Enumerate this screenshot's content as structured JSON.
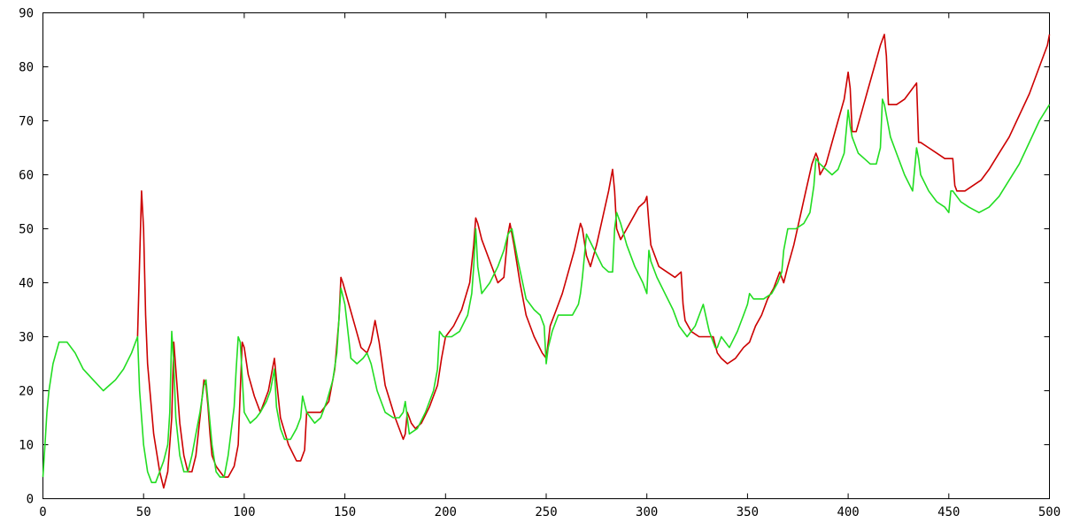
{
  "chart_data": {
    "type": "line",
    "title": "",
    "xlabel": "",
    "ylabel": "",
    "xlim": [
      0,
      500
    ],
    "ylim": [
      0,
      90
    ],
    "xticks": [
      0,
      50,
      100,
      150,
      200,
      250,
      300,
      350,
      400,
      450,
      500
    ],
    "yticks": [
      0,
      10,
      20,
      30,
      40,
      50,
      60,
      70,
      80,
      90
    ],
    "grid": false,
    "legend": "none",
    "series": [
      {
        "color": "#cc0000",
        "x": [
          47,
          48,
          49,
          50,
          51,
          52,
          55,
          58,
          60,
          62,
          64,
          65,
          66,
          68,
          70,
          72,
          74,
          76,
          78,
          80,
          81,
          82,
          83,
          84,
          86,
          88,
          90,
          92,
          95,
          97,
          98,
          99,
          100,
          102,
          105,
          108,
          112,
          114,
          115,
          116,
          118,
          122,
          126,
          128,
          130,
          131,
          133,
          138,
          142,
          145,
          147,
          148,
          149,
          152,
          155,
          158,
          161,
          163,
          165,
          167,
          170,
          175,
          179,
          180,
          181,
          182,
          183,
          185,
          188,
          192,
          196,
          198,
          200,
          204,
          208,
          212,
          214,
          215,
          216,
          218,
          222,
          226,
          229,
          231,
          232,
          234,
          237,
          240,
          244,
          248,
          250,
          251,
          252,
          255,
          258,
          261,
          264,
          267,
          268,
          270,
          272,
          275,
          278,
          281,
          283,
          284,
          285,
          287,
          290,
          293,
          296,
          299,
          300,
          301,
          302,
          306,
          310,
          314,
          317,
          318,
          319,
          322,
          326,
          330,
          333,
          335,
          337,
          340,
          344,
          348,
          351,
          352,
          354,
          357,
          360,
          363,
          366,
          368,
          370,
          373,
          376,
          379,
          382,
          384,
          385,
          386,
          389,
          392,
          395,
          398,
          400,
          401,
          402,
          404,
          407,
          410,
          413,
          416,
          418,
          419,
          420,
          424,
          428,
          432,
          434,
          435,
          436,
          440,
          444,
          448,
          452,
          453,
          454,
          458,
          462,
          466,
          470,
          475,
          480,
          485,
          490,
          495,
          499,
          500
        ],
        "y": [
          30,
          44,
          57,
          50,
          34,
          25,
          12,
          5,
          2,
          5,
          15,
          29,
          24,
          14,
          8,
          5,
          5,
          8,
          15,
          22,
          21,
          17,
          12,
          8,
          6,
          5,
          4,
          4,
          6,
          10,
          20,
          29,
          28,
          23,
          19,
          16,
          20,
          24,
          26,
          22,
          15,
          10,
          7,
          7,
          9,
          16,
          16,
          16,
          18,
          24,
          33,
          41,
          40,
          36,
          32,
          28,
          27,
          29,
          33,
          29,
          21,
          15,
          11,
          12,
          16,
          15,
          14,
          13,
          14,
          17,
          21,
          26,
          30,
          32,
          35,
          40,
          47,
          52,
          51,
          48,
          44,
          40,
          41,
          49,
          51,
          47,
          40,
          34,
          30,
          27,
          26,
          29,
          32,
          35,
          38,
          42,
          46,
          51,
          50,
          45,
          43,
          47,
          52,
          57,
          61,
          57,
          50,
          48,
          50,
          52,
          54,
          55,
          56,
          51,
          47,
          43,
          42,
          41,
          42,
          36,
          33,
          31,
          30,
          30,
          30,
          27,
          26,
          25,
          26,
          28,
          29,
          30,
          32,
          34,
          37,
          39,
          42,
          40,
          43,
          47,
          52,
          57,
          62,
          64,
          63,
          60,
          62,
          66,
          70,
          74,
          79,
          76,
          68,
          68,
          72,
          76,
          80,
          84,
          86,
          82,
          73,
          73,
          74,
          76,
          77,
          66,
          66,
          65,
          64,
          63,
          63,
          58,
          57,
          57,
          58,
          59,
          61,
          64,
          67,
          71,
          75,
          80,
          84,
          86
        ]
      },
      {
        "color": "#22dd22",
        "x": [
          0,
          1,
          2,
          3,
          5,
          8,
          12,
          16,
          20,
          25,
          30,
          33,
          36,
          40,
          44,
          46,
          47,
          48,
          50,
          52,
          54,
          56,
          58,
          60,
          62,
          63,
          64,
          65,
          66,
          68,
          70,
          72,
          74,
          76,
          78,
          80,
          81,
          82,
          84,
          86,
          88,
          90,
          92,
          95,
          96,
          97,
          98,
          100,
          103,
          106,
          108,
          111,
          113,
          114,
          115,
          116,
          118,
          120,
          123,
          126,
          128,
          129,
          131,
          135,
          138,
          141,
          144,
          146,
          147,
          148,
          150,
          153,
          156,
          159,
          161,
          163,
          166,
          170,
          174,
          177,
          179,
          180,
          182,
          186,
          190,
          194,
          196,
          197,
          199,
          203,
          207,
          211,
          213,
          214,
          215,
          216,
          218,
          222,
          226,
          229,
          231,
          233,
          236,
          240,
          244,
          247,
          249,
          250,
          251,
          253,
          256,
          260,
          263,
          266,
          267,
          268,
          270,
          274,
          278,
          281,
          283,
          284,
          285,
          287,
          290,
          294,
          298,
          300,
          301,
          302,
          305,
          309,
          313,
          316,
          318,
          320,
          324,
          328,
          331,
          333,
          334,
          335,
          337,
          341,
          345,
          348,
          350,
          351,
          353,
          358,
          362,
          365,
          367,
          368,
          370,
          374,
          378,
          381,
          383,
          384,
          386,
          389,
          392,
          395,
          398,
          400,
          401,
          402,
          403,
          405,
          408,
          411,
          414,
          416,
          417,
          418,
          419,
          421,
          424,
          428,
          432,
          434,
          435,
          436,
          440,
          444,
          448,
          450,
          451,
          452,
          456,
          460,
          465,
          470,
          475,
          480,
          485,
          490,
          495,
          500
        ],
        "y": [
          4,
          10,
          16,
          20,
          25,
          29,
          29,
          27,
          24,
          22,
          20,
          21,
          22,
          24,
          27,
          29,
          30,
          20,
          10,
          5,
          3,
          3,
          5,
          7,
          10,
          16,
          31,
          25,
          15,
          8,
          5,
          5,
          8,
          12,
          16,
          21,
          22,
          18,
          10,
          5,
          4,
          4,
          8,
          17,
          24,
          30,
          29,
          16,
          14,
          15,
          16,
          18,
          20,
          22,
          24,
          17,
          13,
          11,
          11,
          13,
          15,
          19,
          16,
          14,
          15,
          18,
          22,
          27,
          33,
          39,
          36,
          26,
          25,
          26,
          27,
          25,
          20,
          16,
          15,
          15,
          16,
          18,
          12,
          13,
          16,
          20,
          24,
          31,
          30,
          30,
          31,
          34,
          38,
          43,
          50,
          43,
          38,
          40,
          43,
          46,
          49,
          50,
          44,
          37,
          35,
          34,
          32,
          25,
          28,
          31,
          34,
          34,
          34,
          36,
          38,
          41,
          49,
          46,
          43,
          42,
          42,
          50,
          53,
          51,
          47,
          43,
          40,
          38,
          46,
          44,
          41,
          38,
          35,
          32,
          31,
          30,
          32,
          36,
          31,
          29,
          28,
          28,
          30,
          28,
          31,
          34,
          36,
          38,
          37,
          37,
          38,
          40,
          42,
          46,
          50,
          50,
          51,
          53,
          58,
          63,
          62,
          61,
          60,
          61,
          64,
          72,
          69,
          67,
          66,
          64,
          63,
          62,
          62,
          65,
          74,
          73,
          71,
          67,
          64,
          60,
          57,
          65,
          63,
          60,
          57,
          55,
          54,
          53,
          57,
          57,
          55,
          54,
          53,
          54,
          56,
          59,
          62,
          66,
          70,
          73
        ]
      }
    ]
  }
}
